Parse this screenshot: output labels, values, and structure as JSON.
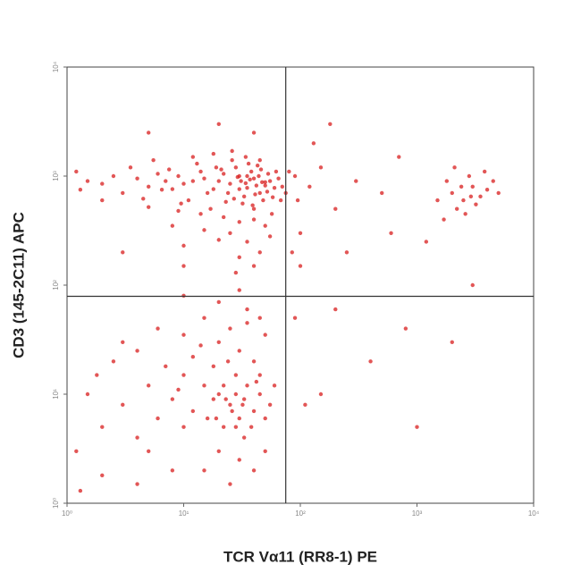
{
  "chart_data": {
    "type": "scatter",
    "x_label": "TCR Vα11 (RR8-1) PE",
    "y_label": "CD3 (145-2C11) APC",
    "log_x": true,
    "log_y": true,
    "xlim": [
      1,
      10000
    ],
    "ylim": [
      1,
      10000
    ],
    "xticks": [
      {
        "value": 1,
        "label": "10⁰"
      },
      {
        "value": 10,
        "label": "10¹"
      },
      {
        "value": 100,
        "label": "10²"
      },
      {
        "value": 1000,
        "label": "10³"
      },
      {
        "value": 10000,
        "label": "10⁴"
      }
    ],
    "yticks": [
      {
        "value": 1,
        "label": "10⁰"
      },
      {
        "value": 10,
        "label": "10¹"
      },
      {
        "value": 100,
        "label": "10²"
      },
      {
        "value": 1000,
        "label": "10³"
      },
      {
        "value": 10000,
        "label": "10⁴"
      }
    ],
    "quadrant_gates": {
      "x": 75,
      "y": 79
    },
    "color": "#d81e1e",
    "x": [
      20,
      25,
      30,
      35,
      40,
      45,
      50,
      28,
      33,
      38,
      42,
      22,
      18,
      27,
      31,
      36,
      44,
      48,
      55,
      60,
      24,
      29,
      34,
      39,
      46,
      52,
      26,
      32,
      37,
      41,
      47,
      53,
      58,
      21,
      23,
      30,
      35,
      40,
      43,
      50,
      12,
      14,
      16,
      10,
      9,
      8,
      11,
      13,
      15,
      17,
      19,
      7,
      6,
      5,
      4,
      3,
      2.5,
      2,
      1.5,
      1.2,
      3.5,
      4.5,
      5.5,
      6.5,
      7.5,
      9.5,
      12,
      18,
      26,
      34,
      45,
      62,
      65,
      70,
      68,
      57,
      40,
      30,
      22,
      14,
      9,
      5,
      2,
      1.3,
      25,
      35,
      45,
      30,
      20,
      15,
      50,
      10,
      40,
      28,
      55,
      8,
      25,
      30,
      20,
      35,
      40,
      22,
      28,
      33,
      18,
      45,
      50,
      15,
      12,
      10,
      8,
      6,
      5,
      4,
      3,
      2,
      1.5,
      1.2,
      2.5,
      4,
      7,
      12,
      20,
      30,
      40,
      50,
      25,
      15,
      10,
      35,
      45,
      55,
      60,
      20,
      30,
      15,
      8,
      4,
      2,
      1.3,
      25,
      40,
      50,
      5,
      10,
      18,
      22,
      28,
      32,
      38,
      42,
      26,
      24,
      16,
      14,
      9,
      6,
      3,
      1.8,
      35,
      20,
      10,
      30,
      45,
      28,
      33,
      19,
      23,
      2000,
      2500,
      3000,
      1800,
      2200,
      3500,
      4000,
      2800,
      1500,
      2600,
      3200,
      4500,
      2400,
      1700,
      3800,
      2100,
      5000,
      2900,
      120,
      150,
      200,
      300,
      500,
      100,
      90,
      250,
      800,
      400,
      150,
      1000,
      200,
      600,
      3000,
      2000,
      90,
      110,
      700,
      1200,
      85,
      95,
      130,
      180,
      100,
      75,
      80,
      20,
      5,
      40,
      10,
      3
    ],
    "values": [
      900,
      850,
      1000,
      780,
      950,
      700,
      880,
      1200,
      650,
      1100,
      820,
      1050,
      760,
      620,
      900,
      1300,
      1000,
      600,
      900,
      780,
      700,
      980,
      860,
      540,
      1150,
      720,
      1400,
      560,
      930,
      680,
      880,
      1050,
      640,
      1150,
      580,
      760,
      1000,
      500,
      1250,
      820,
      900,
      1100,
      700,
      850,
      1000,
      760,
      600,
      1300,
      950,
      500,
      1200,
      900,
      1050,
      800,
      950,
      700,
      1000,
      850,
      900,
      1100,
      1200,
      620,
      1400,
      750,
      1150,
      560,
      1500,
      1600,
      1700,
      1500,
      1400,
      1100,
      950,
      800,
      600,
      450,
      400,
      380,
      420,
      450,
      480,
      520,
      600,
      750,
      300,
      250,
      200,
      180,
      260,
      320,
      350,
      230,
      150,
      130,
      280,
      350,
      8,
      6,
      10,
      12,
      7,
      5,
      15,
      4,
      9,
      10,
      6,
      12,
      7,
      5,
      9,
      6,
      12,
      4,
      8,
      5,
      10,
      3,
      20,
      25,
      18,
      22,
      30,
      25,
      20,
      35,
      40,
      50,
      35,
      45,
      15,
      8,
      12,
      3,
      2.5,
      2,
      2,
      1.5,
      1.8,
      1.3,
      1.5,
      2,
      3,
      3,
      15,
      18,
      12,
      10,
      8,
      5,
      13,
      7,
      20,
      6,
      28,
      11,
      40,
      30,
      15,
      60,
      70,
      80,
      90,
      50,
      5,
      9,
      6,
      9,
      700,
      600,
      800,
      900,
      500,
      650,
      750,
      1000,
      600,
      450,
      550,
      900,
      800,
      400,
      1100,
      1200,
      700,
      650,
      800,
      1200,
      500,
      900,
      700,
      300,
      1000,
      200,
      40,
      20,
      10,
      5,
      60,
      300,
      100,
      30,
      50,
      8,
      1500,
      250,
      200,
      600,
      2000,
      3000,
      150,
      700,
      1100,
      3000,
      2500,
      2500,
      150,
      200
    ]
  }
}
